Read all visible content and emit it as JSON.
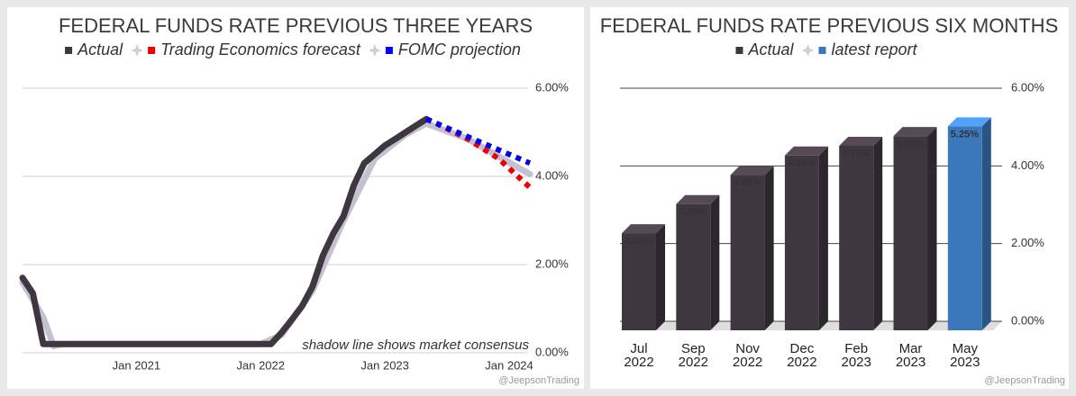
{
  "chart_data": [
    {
      "type": "line",
      "title": "FEDERAL FUNDS RATE PREVIOUS THREE YEARS",
      "annotation": "shadow line shows market consensus",
      "credit": "@JeepsonTrading",
      "xlim": [
        "2020-02",
        "2024-03"
      ],
      "xticks": [
        {
          "value": "2021-01",
          "label": "Jan 2021"
        },
        {
          "value": "2022-01",
          "label": "Jan 2022"
        },
        {
          "value": "2023-01",
          "label": "Jan 2023"
        },
        {
          "value": "2024-01",
          "label": "Jan 2024"
        }
      ],
      "ylim": [
        0,
        6
      ],
      "yticks": [
        {
          "value": 0,
          "label": "0.00%"
        },
        {
          "value": 2,
          "label": "2.00%"
        },
        {
          "value": 4,
          "label": "4.00%"
        },
        {
          "value": 6,
          "label": "6.00%"
        }
      ],
      "grid": true,
      "legend": "top",
      "series": [
        {
          "color": "#c5c0d2",
          "line_style": "solid",
          "x": [
            "2020-02",
            "2020-04",
            "2020-05",
            "2020-06",
            "2022-01",
            "2022-03",
            "2022-06",
            "2022-09",
            "2022-12",
            "2023-03",
            "2023-05",
            "2023-09",
            "2023-12",
            "2024-03"
          ],
          "values": [
            1.6,
            0.8,
            0.15,
            0.2,
            0.2,
            0.4,
            1.4,
            3.0,
            4.4,
            4.95,
            5.2,
            4.85,
            4.45,
            4.05
          ]
        },
        {
          "name": "Actual",
          "color": "#3f373f",
          "line_style": "solid",
          "x": [
            "2020-02",
            "2020-03",
            "2020-04",
            "2022-02",
            "2022-03",
            "2022-04",
            "2022-05",
            "2022-06",
            "2022-07",
            "2022-08",
            "2022-09",
            "2022-10",
            "2022-11",
            "2022-12",
            "2023-01",
            "2023-02",
            "2023-03",
            "2023-04",
            "2023-05"
          ],
          "values": [
            1.7,
            1.35,
            0.2,
            0.2,
            0.45,
            0.75,
            1.06,
            1.5,
            2.2,
            2.7,
            3.1,
            3.8,
            4.3,
            4.5,
            4.7,
            4.85,
            5.0,
            5.15,
            5.3
          ]
        },
        {
          "name": "Trading Economics forecast",
          "color": "#ee0000",
          "line_style": "dotted",
          "x": [
            "2023-05",
            "2023-06",
            "2023-09",
            "2023-12",
            "2024-03"
          ],
          "values": [
            5.3,
            5.2,
            4.85,
            4.4,
            3.75
          ]
        },
        {
          "name": "FOMC projection",
          "color": "#0000ee",
          "line_style": "dotted",
          "x": [
            "2023-05",
            "2023-12",
            "2024-03"
          ],
          "values": [
            5.3,
            4.6,
            4.3
          ]
        }
      ]
    },
    {
      "type": "bar3d",
      "title": "FEDERAL FUNDS RATE PREVIOUS SIX MONTHS",
      "credit": "@JeepsonTrading",
      "categories": [
        "Jul 2022",
        "Sep 2022",
        "Nov 2022",
        "Dec 2022",
        "Feb 2023",
        "Mar 2023",
        "May 2023"
      ],
      "ylim": [
        0,
        6
      ],
      "yticks": [
        {
          "value": 0,
          "label": "0.00%"
        },
        {
          "value": 2,
          "label": "2.00%"
        },
        {
          "value": 4,
          "label": "4.00%"
        },
        {
          "value": 6,
          "label": "6.00%"
        }
      ],
      "grid": true,
      "legend": "top",
      "series": [
        {
          "name": "Actual",
          "color": "#3f373f",
          "values": [
            2.5,
            3.25,
            4.0,
            4.5,
            4.75,
            5.0,
            null
          ],
          "value_labels": [
            "2.50%",
            "3.25%",
            "4.00%",
            "4.50%",
            "4.75%",
            "5.00%",
            null
          ]
        },
        {
          "name": "latest report",
          "color": "#3b78bb",
          "values": [
            null,
            null,
            null,
            null,
            null,
            null,
            5.25
          ],
          "value_labels": [
            null,
            null,
            null,
            null,
            null,
            null,
            "5.25%"
          ]
        }
      ]
    }
  ]
}
